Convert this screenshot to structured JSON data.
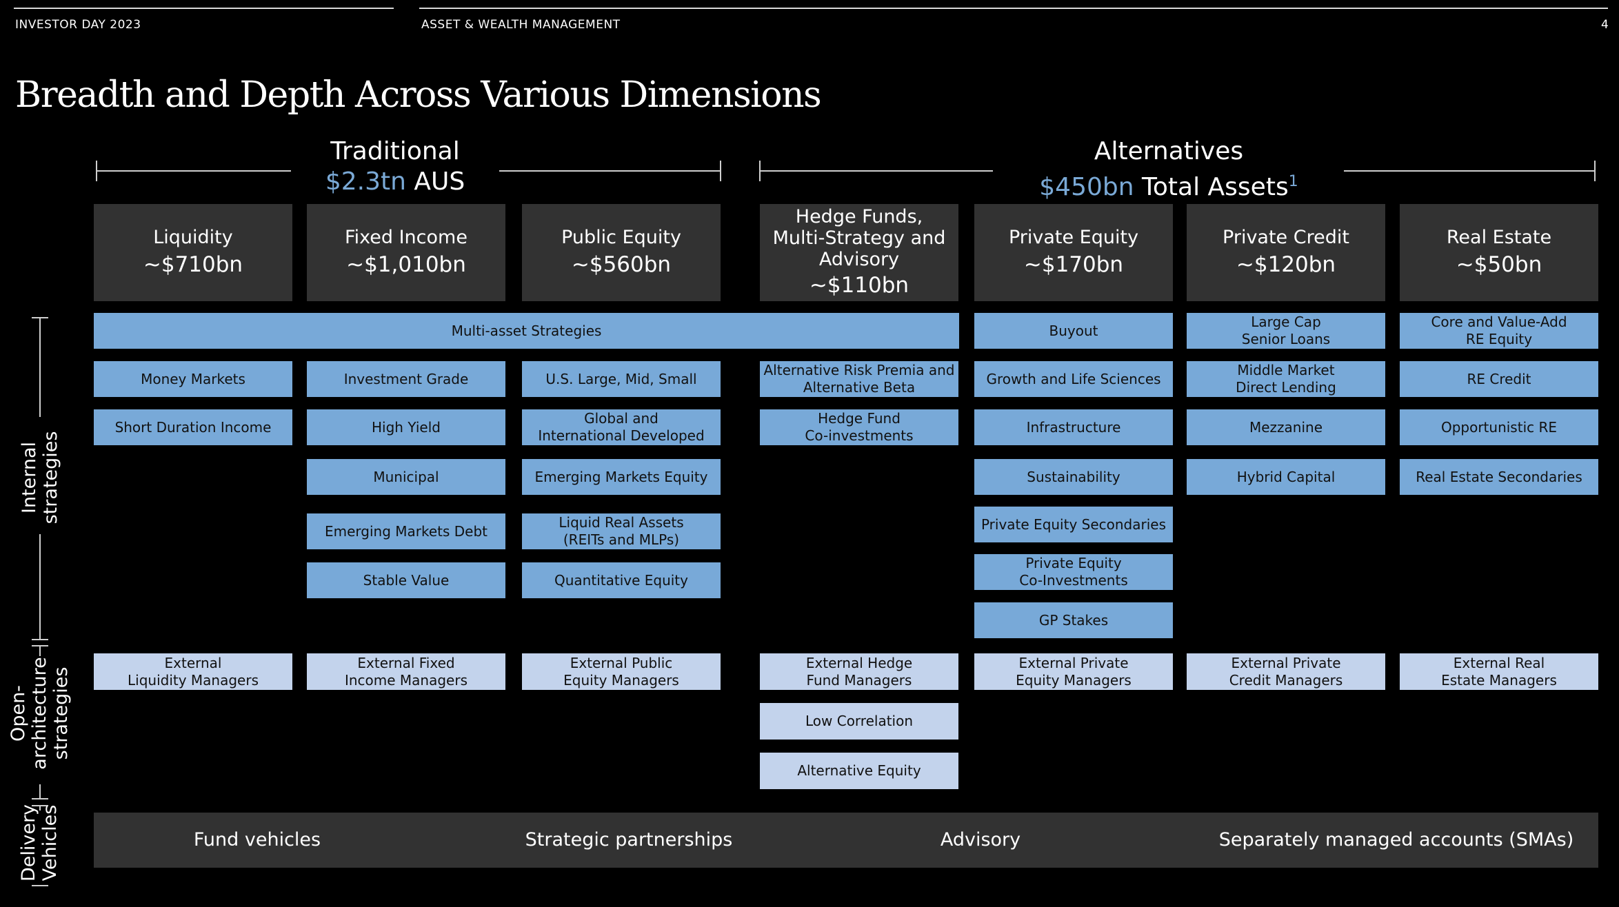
{
  "header": {
    "left": "INVESTOR DAY 2023",
    "center": "ASSET & WEALTH MANAGEMENT",
    "page": "4"
  },
  "title": "Breadth and Depth Across Various Dimensions",
  "groups": {
    "traditional": {
      "name": "Traditional",
      "amount": "$2.3tn",
      "suffix": " AUS"
    },
    "alternatives": {
      "name": "Alternatives",
      "amount": "$450bn",
      "suffix": " Total Assets",
      "footnote": "1"
    }
  },
  "columns": [
    {
      "name": "Liquidity",
      "value": "~$710bn"
    },
    {
      "name": "Fixed Income",
      "value": "~$1,010bn"
    },
    {
      "name": "Public Equity",
      "value": "~$560bn"
    },
    {
      "name": "Hedge Funds,\nMulti-Strategy and\nAdvisory",
      "value": "~$110bn"
    },
    {
      "name": "Private Equity",
      "value": "~$170bn"
    },
    {
      "name": "Private Credit",
      "value": "~$120bn"
    },
    {
      "name": "Real Estate",
      "value": "~$50bn"
    }
  ],
  "internal": {
    "multi_asset": "Multi-asset Strategies",
    "liquidity": [
      "Money Markets",
      "Short Duration Income"
    ],
    "fixed_income": [
      "Investment Grade",
      "High Yield",
      "Municipal",
      "Emerging Markets Debt",
      "Stable Value"
    ],
    "public_equity": [
      "U.S. Large, Mid, Small",
      "Global and\nInternational Developed",
      "Emerging Markets Equity",
      "Liquid Real Assets\n(REITs and MLPs)",
      "Quantitative Equity"
    ],
    "hedge_funds": [
      "Alternative Risk Premia and\nAlternative Beta",
      "Hedge Fund\nCo-investments"
    ],
    "private_equity": [
      "Buyout",
      "Growth and Life Sciences",
      "Infrastructure",
      "Sustainability",
      "Private Equity Secondaries",
      "Private Equity\nCo-Investments",
      "GP Stakes"
    ],
    "private_credit": [
      "Large Cap\nSenior Loans",
      "Middle Market\nDirect Lending",
      "Mezzanine",
      "Hybrid Capital"
    ],
    "real_estate": [
      "Core and Value-Add\nRE Equity",
      "RE Credit",
      "Opportunistic RE",
      "Real Estate Secondaries"
    ]
  },
  "open_architecture": {
    "external": [
      "External\nLiquidity Managers",
      "External Fixed\nIncome Managers",
      "External Public\nEquity Managers",
      "External Hedge\nFund Managers",
      "External Private\nEquity Managers",
      "External Private\nCredit Managers",
      "External Real\nEstate Managers"
    ],
    "hedge_extra": [
      "Low Correlation",
      "Alternative Equity"
    ]
  },
  "side_labels": {
    "internal": "Internal\nstrategies",
    "open": "Open-\narchitecture\nstrategies",
    "delivery": "Delivery\nVehicles"
  },
  "delivery": [
    "Fund vehicles",
    "Strategic partnerships",
    "Advisory",
    "Separately managed accounts (SMAs)"
  ],
  "colors": {
    "internal_box": "#78a9d8",
    "external_box": "#c3d3ec",
    "header_box": "#323232",
    "accent": "#7aa9d6"
  }
}
